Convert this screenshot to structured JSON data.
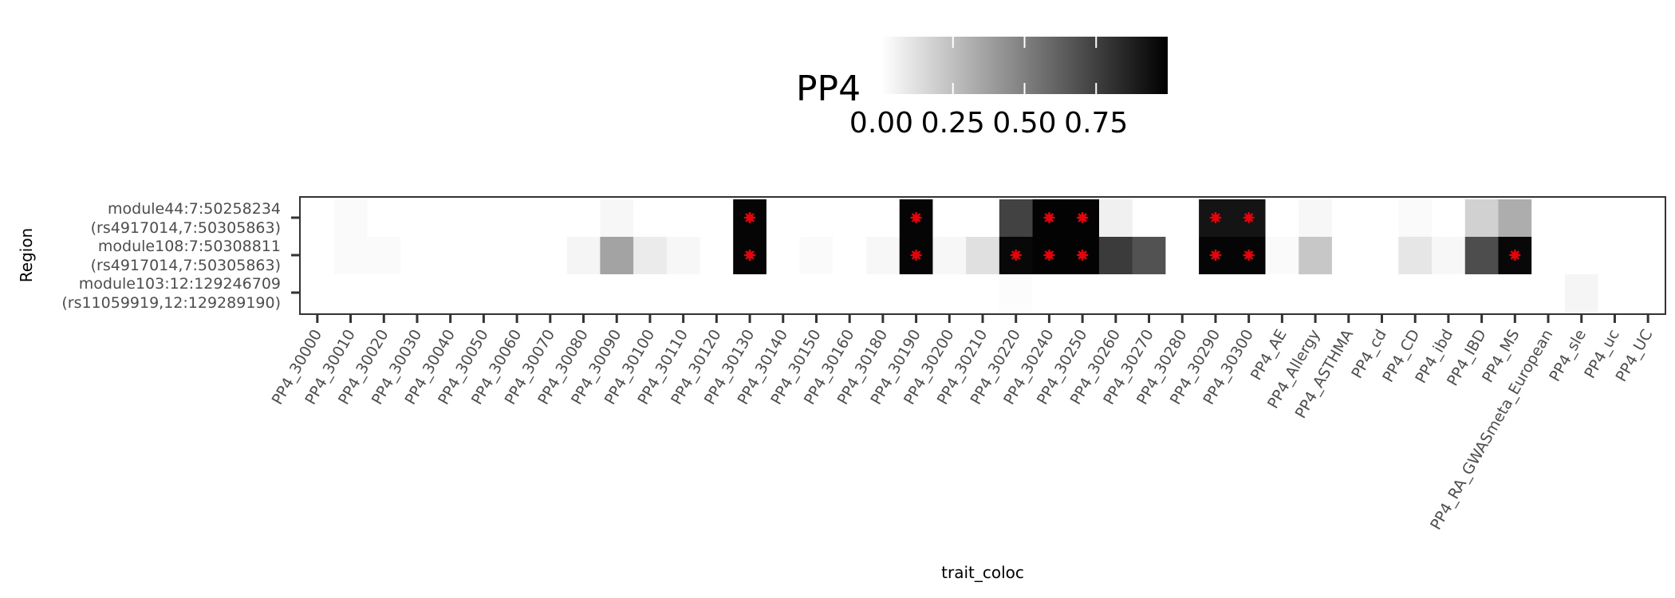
{
  "chart_data": {
    "type": "heatmap",
    "xlabel": "trait_coloc",
    "ylabel": "Region",
    "legend": {
      "title": "PP4",
      "position": "top",
      "ticks": [
        "0.00",
        "0.25",
        "0.50",
        "0.75"
      ],
      "range": [
        0,
        1
      ],
      "colors": [
        "#ffffff",
        "#000000"
      ]
    },
    "marker_color": "#e8000b",
    "x": [
      "PP4_30000",
      "PP4_30010",
      "PP4_30020",
      "PP4_30030",
      "PP4_30040",
      "PP4_30050",
      "PP4_30060",
      "PP4_30070",
      "PP4_30080",
      "PP4_30090",
      "PP4_30100",
      "PP4_30110",
      "PP4_30120",
      "PP4_30130",
      "PP4_30140",
      "PP4_30150",
      "PP4_30160",
      "PP4_30180",
      "PP4_30190",
      "PP4_30200",
      "PP4_30210",
      "PP4_30220",
      "PP4_30240",
      "PP4_30250",
      "PP4_30260",
      "PP4_30270",
      "PP4_30280",
      "PP4_30290",
      "PP4_30300",
      "PP4_AE",
      "PP4_Allergy",
      "PP4_ASTHMA",
      "PP4_cd",
      "PP4_CD",
      "PP4_ibd",
      "PP4_IBD",
      "PP4_MS",
      "PP4_RA_GWASmeta_European",
      "PP4_sle",
      "PP4_uc",
      "PP4_UC"
    ],
    "y": [
      {
        "line1": "module44:7:50258234",
        "line2": "(rs4917014,7:50305863)"
      },
      {
        "line1": "module108:7:50308811",
        "line2": "(rs4917014,7:50305863)"
      },
      {
        "line1": "module103:12:129246709",
        "line2": "(rs11059919,12:129289190)"
      }
    ],
    "values": [
      [
        0.0,
        0.02,
        0.0,
        0.0,
        0.0,
        0.0,
        0.0,
        0.0,
        0.0,
        0.03,
        0.0,
        0.0,
        0.0,
        0.98,
        0.0,
        0.0,
        0.0,
        0.0,
        0.98,
        0.0,
        0.0,
        0.74,
        0.99,
        0.99,
        0.06,
        0.0,
        0.0,
        0.92,
        0.92,
        0.0,
        0.03,
        0.0,
        0.0,
        0.02,
        0.0,
        0.18,
        0.32,
        0.0,
        0.0,
        0.0,
        0.0
      ],
      [
        0.0,
        0.02,
        0.02,
        0.0,
        0.0,
        0.0,
        0.0,
        0.0,
        0.04,
        0.36,
        0.08,
        0.03,
        0.0,
        0.98,
        0.0,
        0.02,
        0.0,
        0.03,
        0.98,
        0.03,
        0.12,
        0.97,
        0.99,
        0.99,
        0.77,
        0.68,
        0.0,
        0.98,
        0.98,
        0.02,
        0.22,
        0.0,
        0.0,
        0.1,
        0.03,
        0.7,
        0.97,
        0.0,
        0.0,
        0.0,
        0.0
      ],
      [
        0.0,
        0.0,
        0.0,
        0.0,
        0.0,
        0.0,
        0.0,
        0.0,
        0.0,
        0.0,
        0.0,
        0.0,
        0.0,
        0.0,
        0.0,
        0.0,
        0.0,
        0.0,
        0.0,
        0.0,
        0.0,
        0.01,
        0.0,
        0.0,
        0.0,
        0.0,
        0.0,
        0.0,
        0.0,
        0.0,
        0.0,
        0.0,
        0.0,
        0.0,
        0.0,
        0.0,
        0.0,
        0.0,
        0.04,
        0.0,
        0.0
      ]
    ],
    "significant": [
      [
        0,
        13
      ],
      [
        0,
        18
      ],
      [
        0,
        22
      ],
      [
        0,
        23
      ],
      [
        0,
        27
      ],
      [
        0,
        28
      ],
      [
        1,
        13
      ],
      [
        1,
        18
      ],
      [
        1,
        21
      ],
      [
        1,
        22
      ],
      [
        1,
        23
      ],
      [
        1,
        27
      ],
      [
        1,
        28
      ],
      [
        1,
        36
      ]
    ]
  }
}
